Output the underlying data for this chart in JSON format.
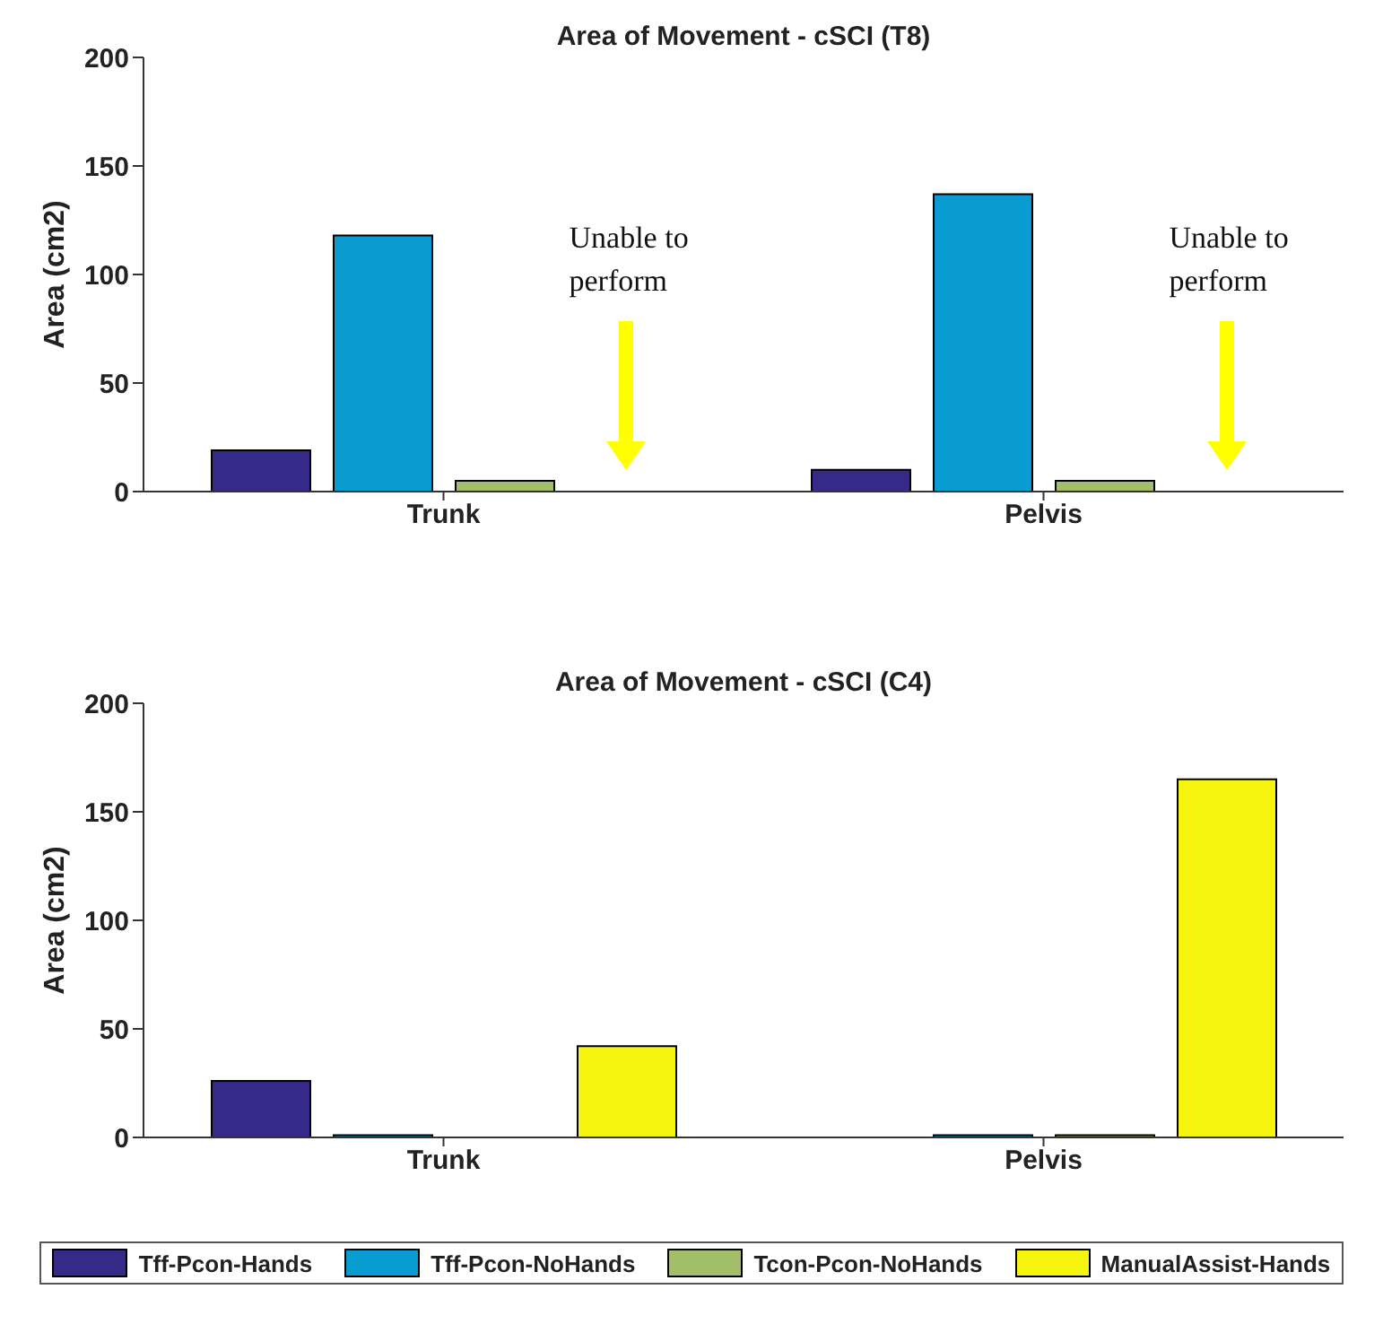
{
  "chart_data": [
    {
      "type": "bar",
      "title": "Area of Movement - cSCI (T8)",
      "ylabel": "Area (cm2)",
      "categories": [
        "Trunk",
        "Pelvis"
      ],
      "series": [
        {
          "color": "#352a87",
          "values": [
            19,
            10
          ]
        },
        {
          "color": "#0a9bd0",
          "values": [
            118,
            137
          ]
        },
        {
          "color": "#a3be6b",
          "values": [
            5,
            5
          ]
        },
        {
          "color": "#f5f50f",
          "values": [
            null,
            null
          ]
        }
      ],
      "annotations": [
        "Unable to perform",
        "Unable to perform"
      ],
      "ylim": [
        0,
        200
      ],
      "yticks": [
        0,
        50,
        100,
        150,
        200
      ],
      "grid": false,
      "legend": false
    },
    {
      "type": "bar",
      "title": "Area of Movement - cSCI (C4)",
      "ylabel": "Area (cm2)",
      "categories": [
        "Trunk",
        "Pelvis"
      ],
      "series": [
        {
          "name": "Tff-Pcon-Hands",
          "color": "#352a87",
          "values": [
            26,
            0
          ]
        },
        {
          "name": "Tff-Pcon-NoHands",
          "color": "#0a9bd0",
          "values": [
            1,
            1
          ]
        },
        {
          "name": "Tcon-Pcon-NoHands",
          "color": "#a3be6b",
          "values": [
            0,
            1
          ]
        },
        {
          "name": "ManualAssist-Hands",
          "color": "#f5f50f",
          "values": [
            42,
            165
          ]
        }
      ],
      "ylim": [
        0,
        200
      ],
      "yticks": [
        0,
        50,
        100,
        150,
        200
      ],
      "grid": false,
      "legend": "bottom"
    }
  ]
}
